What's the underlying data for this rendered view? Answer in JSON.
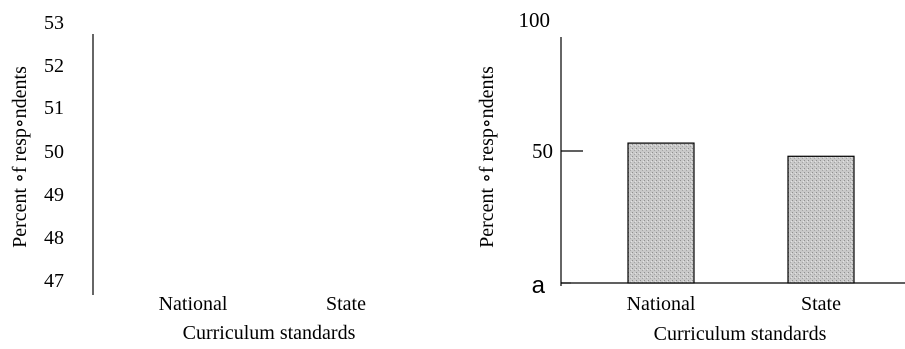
{
  "chart_data": [
    {
      "type": "bar",
      "categories": [
        "National",
        "State"
      ],
      "values": [
        null,
        null
      ],
      "xlabel": "Curriculum standards",
      "ylabel": "Percent ∘f resp∘ndents",
      "ylim": [
        47,
        53
      ],
      "yticks": [
        "47",
        "48",
        "49",
        "50",
        "51",
        "52",
        "53"
      ],
      "grid": false
    },
    {
      "type": "bar",
      "categories": [
        "National",
        "State"
      ],
      "values": [
        53,
        48
      ],
      "xlabel": "Curriculum standards",
      "ylabel": "Percent ∘f resp∘ndents",
      "ylim": [
        0,
        100
      ],
      "yticks": [
        "a",
        "50",
        "100"
      ],
      "bar_color": "#c8c8c8",
      "grid": false
    }
  ]
}
